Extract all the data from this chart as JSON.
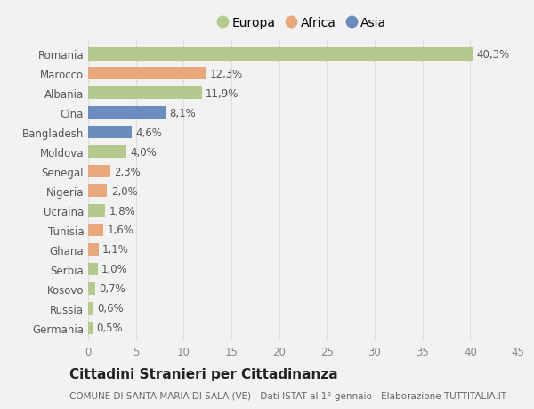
{
  "countries": [
    "Romania",
    "Marocco",
    "Albania",
    "Cina",
    "Bangladesh",
    "Moldova",
    "Senegal",
    "Nigeria",
    "Ucraina",
    "Tunisia",
    "Ghana",
    "Serbia",
    "Kosovo",
    "Russia",
    "Germania"
  ],
  "values": [
    40.3,
    12.3,
    11.9,
    8.1,
    4.6,
    4.0,
    2.3,
    2.0,
    1.8,
    1.6,
    1.1,
    1.0,
    0.7,
    0.6,
    0.5
  ],
  "labels": [
    "40,3%",
    "12,3%",
    "11,9%",
    "8,1%",
    "4,6%",
    "4,0%",
    "2,3%",
    "2,0%",
    "1,8%",
    "1,6%",
    "1,1%",
    "1,0%",
    "0,7%",
    "0,6%",
    "0,5%"
  ],
  "continents": [
    "Europa",
    "Africa",
    "Europa",
    "Asia",
    "Asia",
    "Europa",
    "Africa",
    "Africa",
    "Europa",
    "Africa",
    "Africa",
    "Europa",
    "Europa",
    "Europa",
    "Europa"
  ],
  "colors": {
    "Europa": "#b5c98e",
    "Africa": "#e8a87c",
    "Asia": "#6b8cbf"
  },
  "xlim": [
    0,
    45
  ],
  "xticks": [
    0,
    5,
    10,
    15,
    20,
    25,
    30,
    35,
    40,
    45
  ],
  "background_color": "#f2f2f2",
  "title": "Cittadini Stranieri per Cittadinanza",
  "subtitle": "COMUNE DI SANTA MARIA DI SALA (VE) - Dati ISTAT al 1° gennaio - Elaborazione TUTTITALIA.IT",
  "bar_height": 0.65,
  "label_fontsize": 8.5,
  "tick_fontsize": 8.5,
  "title_fontsize": 11,
  "subtitle_fontsize": 7.5
}
